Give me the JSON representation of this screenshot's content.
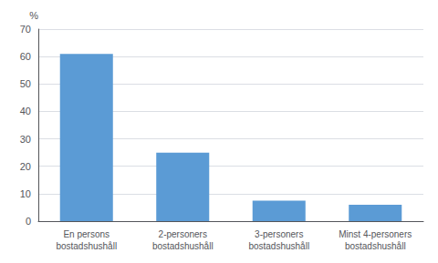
{
  "chart_data": {
    "type": "bar",
    "categories": [
      "En persons\nbostadshushåll",
      "2-personers\nbostadshushåll",
      "3-personers\nbostadshushåll",
      "Minst 4-personers\nbostadshushåll"
    ],
    "values": [
      61,
      25,
      7.5,
      6
    ],
    "color": "#5b9bd5",
    "ylabel": "%",
    "ylim": [
      0,
      70
    ],
    "yticks": [
      0,
      10,
      20,
      30,
      40,
      50,
      60,
      70
    ],
    "grid": true
  }
}
